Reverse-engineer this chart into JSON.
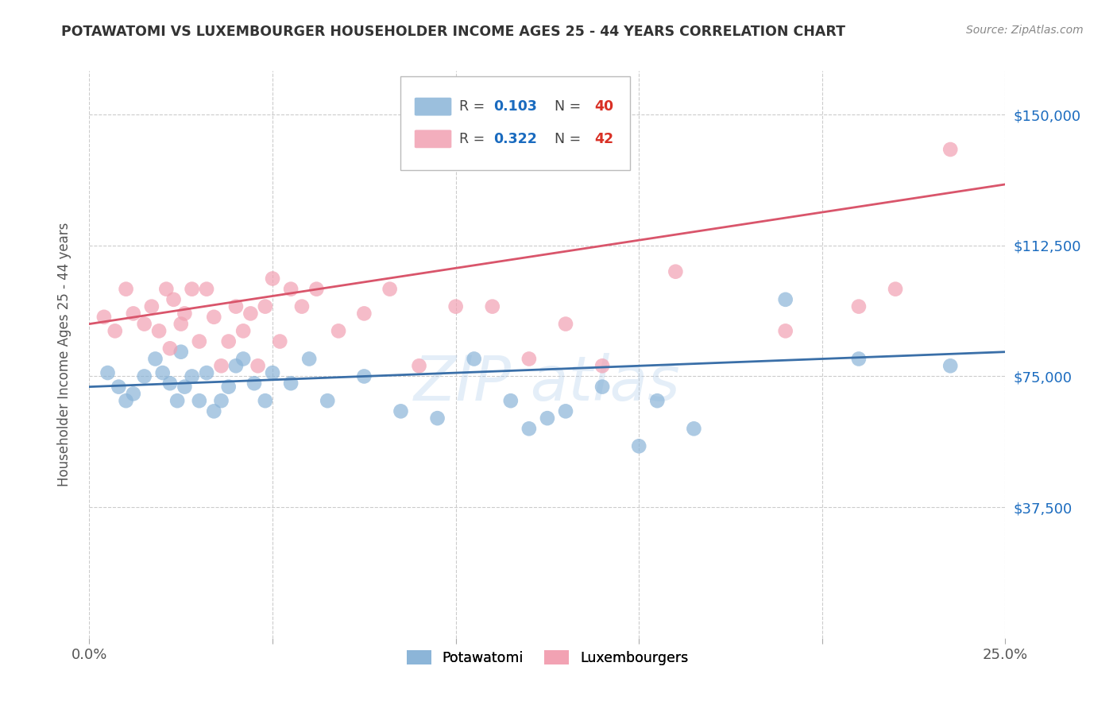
{
  "title": "POTAWATOMI VS LUXEMBOURGER HOUSEHOLDER INCOME AGES 25 - 44 YEARS CORRELATION CHART",
  "source": "Source: ZipAtlas.com",
  "ylabel": "Householder Income Ages 25 - 44 years",
  "xlim": [
    0,
    0.25
  ],
  "ylim": [
    0,
    162500
  ],
  "yticks": [
    37500,
    75000,
    112500,
    150000
  ],
  "ytick_labels": [
    "$37,500",
    "$75,000",
    "$112,500",
    "$150,000"
  ],
  "xticks": [
    0.0,
    0.05,
    0.1,
    0.15,
    0.2,
    0.25
  ],
  "background_color": "#ffffff",
  "grid_color": "#cccccc",
  "blue_color": "#8ab4d8",
  "pink_color": "#f2a0b2",
  "blue_line_color": "#3a6fa8",
  "pink_line_color": "#d9556b",
  "blue_R": 0.103,
  "blue_N": 40,
  "pink_R": 0.322,
  "pink_N": 42,
  "legend_R_color": "#1a6bbf",
  "legend_N_color": "#d93025",
  "blue_scatter_x": [
    0.005,
    0.008,
    0.01,
    0.012,
    0.015,
    0.018,
    0.02,
    0.022,
    0.024,
    0.025,
    0.026,
    0.028,
    0.03,
    0.032,
    0.034,
    0.036,
    0.038,
    0.04,
    0.042,
    0.045,
    0.048,
    0.05,
    0.055,
    0.06,
    0.065,
    0.075,
    0.085,
    0.095,
    0.105,
    0.115,
    0.12,
    0.125,
    0.13,
    0.14,
    0.15,
    0.155,
    0.165,
    0.19,
    0.21,
    0.235
  ],
  "blue_scatter_y": [
    76000,
    72000,
    68000,
    70000,
    75000,
    80000,
    76000,
    73000,
    68000,
    82000,
    72000,
    75000,
    68000,
    76000,
    65000,
    68000,
    72000,
    78000,
    80000,
    73000,
    68000,
    76000,
    73000,
    80000,
    68000,
    75000,
    65000,
    63000,
    80000,
    68000,
    60000,
    63000,
    65000,
    72000,
    55000,
    68000,
    60000,
    97000,
    80000,
    78000
  ],
  "pink_scatter_x": [
    0.004,
    0.007,
    0.01,
    0.012,
    0.015,
    0.017,
    0.019,
    0.021,
    0.022,
    0.023,
    0.025,
    0.026,
    0.028,
    0.03,
    0.032,
    0.034,
    0.036,
    0.038,
    0.04,
    0.042,
    0.044,
    0.046,
    0.048,
    0.05,
    0.052,
    0.055,
    0.058,
    0.062,
    0.068,
    0.075,
    0.082,
    0.09,
    0.1,
    0.11,
    0.12,
    0.13,
    0.14,
    0.16,
    0.19,
    0.21,
    0.22,
    0.235
  ],
  "pink_scatter_y": [
    92000,
    88000,
    100000,
    93000,
    90000,
    95000,
    88000,
    100000,
    83000,
    97000,
    90000,
    93000,
    100000,
    85000,
    100000,
    92000,
    78000,
    85000,
    95000,
    88000,
    93000,
    78000,
    95000,
    103000,
    85000,
    100000,
    95000,
    100000,
    88000,
    93000,
    100000,
    78000,
    95000,
    95000,
    80000,
    90000,
    78000,
    105000,
    88000,
    95000,
    100000,
    140000
  ]
}
